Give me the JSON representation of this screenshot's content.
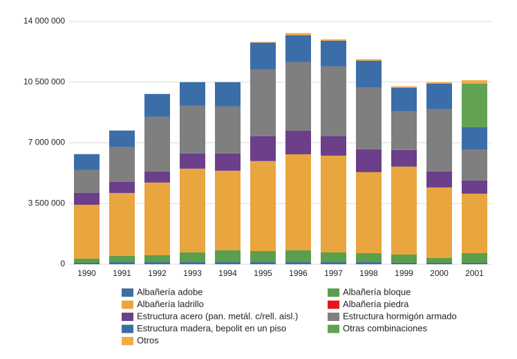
{
  "chart_data": {
    "type": "stacked-bar",
    "categories": [
      "1990",
      "1991",
      "1992",
      "1993",
      "1994",
      "1995",
      "1996",
      "1997",
      "1998",
      "1999",
      "2000",
      "2001"
    ],
    "ylim": [
      0,
      14000000
    ],
    "yticks": [
      0,
      {
        "value": 3500000,
        "label": "3 500 000"
      },
      {
        "value": 7000000,
        "label": "7 000 000"
      },
      {
        "value": 10500000,
        "label": "10 500 000"
      },
      {
        "value": 14000000,
        "label": "14 000 000"
      }
    ],
    "grid": true,
    "series": [
      {
        "name": "Albañería adobe",
        "color": "#3d6fa6",
        "values": [
          80000,
          120000,
          120000,
          120000,
          120000,
          120000,
          120000,
          120000,
          120000,
          80000,
          80000,
          80000
        ]
      },
      {
        "name": "Albañería bloque",
        "color": "#5b9e4c",
        "values": [
          240000,
          360000,
          400000,
          560000,
          680000,
          640000,
          680000,
          560000,
          520000,
          480000,
          280000,
          560000
        ]
      },
      {
        "name": "Albañería ladrillo",
        "color": "#e9a53e",
        "values": [
          3110000,
          3630000,
          4190000,
          4830000,
          4590000,
          5190000,
          5540000,
          5580000,
          4670000,
          5070000,
          4070000,
          3430000
        ]
      },
      {
        "name": "Albañería piedra",
        "color": "#e8141c",
        "values": [
          0,
          0,
          0,
          0,
          0,
          0,
          0,
          0,
          0,
          0,
          0,
          0
        ]
      },
      {
        "name": "Estructura acero (pan. metál. c/rell. aisl.)",
        "color": "#6b3f8a",
        "values": [
          680000,
          640000,
          640000,
          880000,
          1000000,
          1440000,
          1360000,
          1120000,
          1320000,
          960000,
          920000,
          760000
        ]
      },
      {
        "name": "Estructura hormigón armado",
        "color": "#7f7f7f",
        "values": [
          1320000,
          2000000,
          3150000,
          2750000,
          2710000,
          3830000,
          3950000,
          4030000,
          3550000,
          2230000,
          3590000,
          1790000
        ]
      },
      {
        "name": "Estructura madera, bepolit en un piso",
        "color": "#3b6ea8",
        "values": [
          920000,
          960000,
          1320000,
          1360000,
          1400000,
          1560000,
          1560000,
          1480000,
          1560000,
          1360000,
          1480000,
          1280000
        ]
      },
      {
        "name": "Otras combinaciones",
        "color": "#61a352",
        "values": [
          0,
          0,
          0,
          0,
          0,
          0,
          0,
          0,
          0,
          0,
          0,
          2510000
        ]
      },
      {
        "name": "Otros",
        "color": "#f1aa48",
        "values": [
          0,
          0,
          0,
          0,
          0,
          40000,
          120000,
          80000,
          80000,
          80000,
          80000,
          200000
        ]
      }
    ]
  }
}
